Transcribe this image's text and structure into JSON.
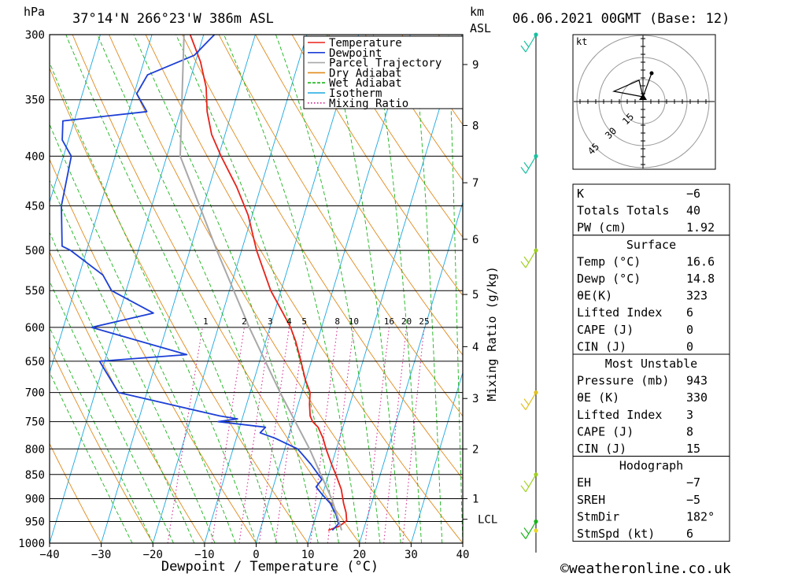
{
  "header": {
    "pressure_unit": "hPa",
    "location": "37°14'N  266°23'W  386m  ASL",
    "height_unit_km": "km",
    "height_unit_asl": "ASL",
    "datetime": "06.06.2021  00GMT  (Base: 12)"
  },
  "chart_data": {
    "type": "line",
    "xlabel": "Dewpoint / Temperature (°C)",
    "ylabel": "hPa",
    "right_axis_label": "Mixing Ratio (g/kg)",
    "xlim": [
      -40,
      40
    ],
    "ylim": [
      1000,
      300
    ],
    "x_ticks": [
      "−40",
      "−30",
      "−20",
      "−10",
      "0",
      "10",
      "20",
      "30",
      "40"
    ],
    "x_tick_values": [
      -40,
      -30,
      -20,
      -10,
      0,
      10,
      20,
      30,
      40
    ],
    "pressure_levels": [
      300,
      350,
      400,
      450,
      500,
      550,
      600,
      650,
      700,
      750,
      800,
      850,
      900,
      950,
      1000
    ],
    "height_ticks_km": [
      {
        "label": "9",
        "p": 322
      },
      {
        "label": "8",
        "p": 372
      },
      {
        "label": "7",
        "p": 426
      },
      {
        "label": "6",
        "p": 487
      },
      {
        "label": "5",
        "p": 555
      },
      {
        "label": "4",
        "p": 628
      },
      {
        "label": "3",
        "p": 710
      },
      {
        "label": "2",
        "p": 800
      },
      {
        "label": "1",
        "p": 900
      },
      {
        "label": "LCL",
        "p": 945
      }
    ],
    "mixing_ratio_labels": [
      "1",
      "2",
      "3",
      "4",
      "5",
      "8",
      "10",
      "16",
      "20",
      "25"
    ],
    "mixing_ratio_values": [
      1,
      2,
      3,
      4,
      5,
      8,
      10,
      16,
      20,
      25
    ],
    "legend": {
      "placement": "top-right",
      "entries": [
        {
          "label": "Temperature",
          "color": "#e8221a"
        },
        {
          "label": "Dewpoint",
          "color": "#1c3fd6"
        },
        {
          "label": "Parcel Trajectory",
          "color": "#a8a8a8"
        },
        {
          "label": "Dry Adiabat",
          "color": "#e08a1a"
        },
        {
          "label": "Wet Adiabat",
          "color": "#18b418"
        },
        {
          "label": "Isotherm",
          "color": "#1aa8e0"
        },
        {
          "label": "Mixing Ratio",
          "color": "#d0208c"
        }
      ]
    },
    "series": [
      {
        "name": "Temperature",
        "color": "#e8221a",
        "points": [
          [
            300,
            -42.6
          ],
          [
            320,
            -39.0
          ],
          [
            340,
            -36.4
          ],
          [
            360,
            -34.8
          ],
          [
            380,
            -32.6
          ],
          [
            400,
            -29.5
          ],
          [
            430,
            -24.7
          ],
          [
            460,
            -20.8
          ],
          [
            500,
            -17.1
          ],
          [
            550,
            -12.0
          ],
          [
            580,
            -8.3
          ],
          [
            600,
            -6.0
          ],
          [
            620,
            -4.2
          ],
          [
            650,
            -2.0
          ],
          [
            680,
            0.0
          ],
          [
            700,
            1.6
          ],
          [
            720,
            2.2
          ],
          [
            740,
            3.0
          ],
          [
            750,
            3.8
          ],
          [
            760,
            5.2
          ],
          [
            780,
            6.8
          ],
          [
            800,
            8.0
          ],
          [
            830,
            10.0
          ],
          [
            850,
            11.4
          ],
          [
            880,
            13.3
          ],
          [
            910,
            14.6
          ],
          [
            930,
            15.6
          ],
          [
            948,
            16.2
          ],
          [
            960,
            15.2
          ],
          [
            970,
            13.2
          ]
        ]
      },
      {
        "name": "Dewpoint",
        "color": "#1c3fd6",
        "points": [
          [
            300,
            -37.9
          ],
          [
            315,
            -40.6
          ],
          [
            330,
            -48.5
          ],
          [
            345,
            -49.5
          ],
          [
            360,
            -46.5
          ],
          [
            368,
            -62.2
          ],
          [
            385,
            -61.2
          ],
          [
            400,
            -58.5
          ],
          [
            450,
            -57.5
          ],
          [
            495,
            -55.0
          ],
          [
            500,
            -53.1
          ],
          [
            530,
            -45.4
          ],
          [
            550,
            -42.8
          ],
          [
            580,
            -33.4
          ],
          [
            600,
            -44.5
          ],
          [
            640,
            -24.5
          ],
          [
            650,
            -41.0
          ],
          [
            700,
            -35.5
          ],
          [
            740,
            -14.5
          ],
          [
            745,
            -10.9
          ],
          [
            750,
            -14.5
          ],
          [
            760,
            -5.0
          ],
          [
            770,
            -5.7
          ],
          [
            780,
            -2.5
          ],
          [
            800,
            2.5
          ],
          [
            830,
            6.0
          ],
          [
            860,
            9.0
          ],
          [
            875,
            8.3
          ],
          [
            890,
            9.8
          ],
          [
            910,
            12.0
          ],
          [
            935,
            13.8
          ],
          [
            955,
            14.8
          ],
          [
            970,
            14.0
          ]
        ]
      },
      {
        "name": "Parcel Trajectory",
        "color": "#a8a8a8",
        "points": [
          [
            300,
            -43.8
          ],
          [
            400,
            -37.4
          ],
          [
            500,
            -24.8
          ],
          [
            600,
            -14.0
          ],
          [
            700,
            -4.2
          ],
          [
            800,
            4.8
          ],
          [
            900,
            12.0
          ],
          [
            945,
            14.5
          ],
          [
            970,
            15.8
          ]
        ]
      }
    ],
    "wind_barbs_p": [
      300,
      400,
      500,
      700,
      850,
      950
    ]
  },
  "hodograph": {
    "unit": "kt",
    "ring_labels": [
      "15",
      "30",
      "45"
    ]
  },
  "indices": {
    "general": [
      {
        "label": "K",
        "value": "−6"
      },
      {
        "label": "Totals Totals",
        "value": "40"
      },
      {
        "label": "PW (cm)",
        "value": "1.92"
      }
    ],
    "surface": {
      "title": "Surface",
      "rows": [
        {
          "label": "Temp (°C)",
          "value": "16.6"
        },
        {
          "label": "Dewp (°C)",
          "value": "14.8"
        },
        {
          "label": "θE(K)",
          "value": "323"
        },
        {
          "label": "Lifted Index",
          "value": "6"
        },
        {
          "label": "CAPE (J)",
          "value": "0"
        },
        {
          "label": "CIN (J)",
          "value": "0"
        }
      ]
    },
    "most_unstable": {
      "title": "Most Unstable",
      "rows": [
        {
          "label": "Pressure (mb)",
          "value": "943"
        },
        {
          "label": "θE (K)",
          "value": "330"
        },
        {
          "label": "Lifted Index",
          "value": "3"
        },
        {
          "label": "CAPE (J)",
          "value": "8"
        },
        {
          "label": "CIN (J)",
          "value": "15"
        }
      ]
    },
    "hodograph": {
      "title": "Hodograph",
      "rows": [
        {
          "label": "EH",
          "value": "−7"
        },
        {
          "label": "SREH",
          "value": "−5"
        },
        {
          "label": "StmDir",
          "value": "182°"
        },
        {
          "label": "StmSpd (kt)",
          "value": "6"
        }
      ]
    }
  },
  "footer": {
    "credit": "©weatheronline.co.uk"
  }
}
